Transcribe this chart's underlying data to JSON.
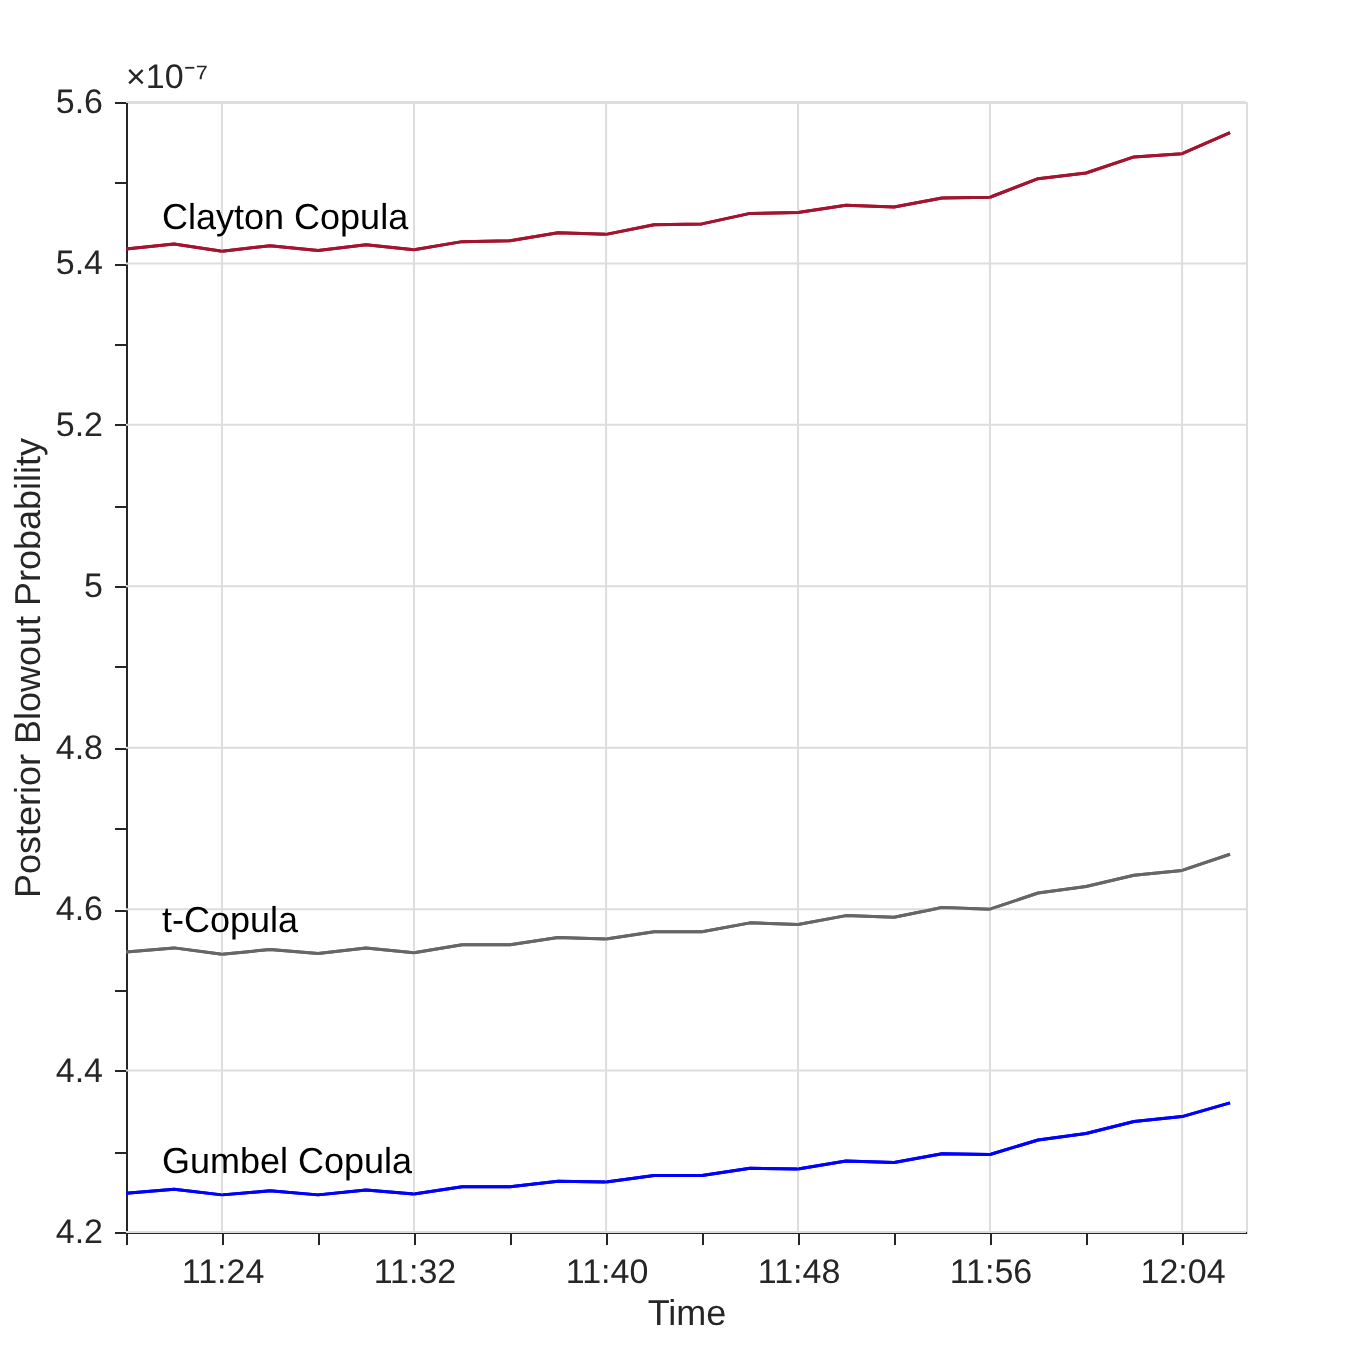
{
  "chart_data": {
    "type": "line",
    "xlabel": "Time",
    "ylabel": "Posterior Blowout Probability",
    "annotations": [
      "×10⁻⁷"
    ],
    "x": [
      11.3333,
      11.3667,
      11.4,
      11.4333,
      11.4667,
      11.5,
      11.5333,
      11.5667,
      11.6,
      11.6333,
      11.6667,
      11.7,
      11.7333,
      11.7667,
      11.8,
      11.8333,
      11.8667,
      11.9,
      11.9333,
      11.9667,
      12.0,
      12.0333,
      12.0667,
      12.1
    ],
    "series": [
      {
        "name": "Clayton Copula",
        "color": "#a2142f",
        "values": [
          5.418,
          5.424,
          5.415,
          5.422,
          5.416,
          5.423,
          5.417,
          5.427,
          5.428,
          5.438,
          5.436,
          5.448,
          5.449,
          5.462,
          5.463,
          5.472,
          5.47,
          5.481,
          5.482,
          5.505,
          5.512,
          5.532,
          5.536,
          5.562
        ]
      },
      {
        "name": "t-Copula",
        "color": "#666666",
        "values": [
          4.547,
          4.552,
          4.544,
          4.55,
          4.545,
          4.552,
          4.546,
          4.556,
          4.556,
          4.565,
          4.563,
          4.572,
          4.572,
          4.583,
          4.581,
          4.592,
          4.59,
          4.602,
          4.6,
          4.62,
          4.628,
          4.642,
          4.648,
          4.668
        ]
      },
      {
        "name": "Gumbel Copula",
        "color": "#0000ff",
        "values": [
          4.248,
          4.253,
          4.246,
          4.251,
          4.246,
          4.252,
          4.247,
          4.256,
          4.256,
          4.263,
          4.262,
          4.27,
          4.27,
          4.279,
          4.278,
          4.288,
          4.286,
          4.297,
          4.296,
          4.314,
          4.322,
          4.337,
          4.343,
          4.36
        ]
      }
    ],
    "xlim": [
      11.3333,
      12.1111
    ],
    "xticks": [
      {
        "value": 11.3333,
        "label": null
      },
      {
        "value": 11.4,
        "label": "11:24"
      },
      {
        "value": 11.4667,
        "label": null
      },
      {
        "value": 11.5333,
        "label": "11:32"
      },
      {
        "value": 11.6,
        "label": null
      },
      {
        "value": 11.6667,
        "label": "11:40"
      },
      {
        "value": 11.7333,
        "label": null
      },
      {
        "value": 11.8,
        "label": "11:48"
      },
      {
        "value": 11.8667,
        "label": null
      },
      {
        "value": 11.9333,
        "label": "11:56"
      },
      {
        "value": 12.0,
        "label": null
      },
      {
        "value": 12.0667,
        "label": "12:04"
      }
    ],
    "ylim": [
      4.2,
      5.6
    ],
    "yticks": [
      4.2,
      {
        "value": 4.3,
        "label": null
      },
      4.4,
      {
        "value": 4.5,
        "label": null
      },
      4.6,
      {
        "value": 4.7,
        "label": null
      },
      4.8,
      {
        "value": 4.9,
        "label": null
      },
      5,
      {
        "value": 5.1,
        "label": null
      },
      5.2,
      {
        "value": 5.3,
        "label": null
      },
      5.4,
      {
        "value": 5.5,
        "label": null
      },
      5.6
    ],
    "grid": true,
    "legend": false,
    "marker": "none",
    "line_style": "solid"
  }
}
